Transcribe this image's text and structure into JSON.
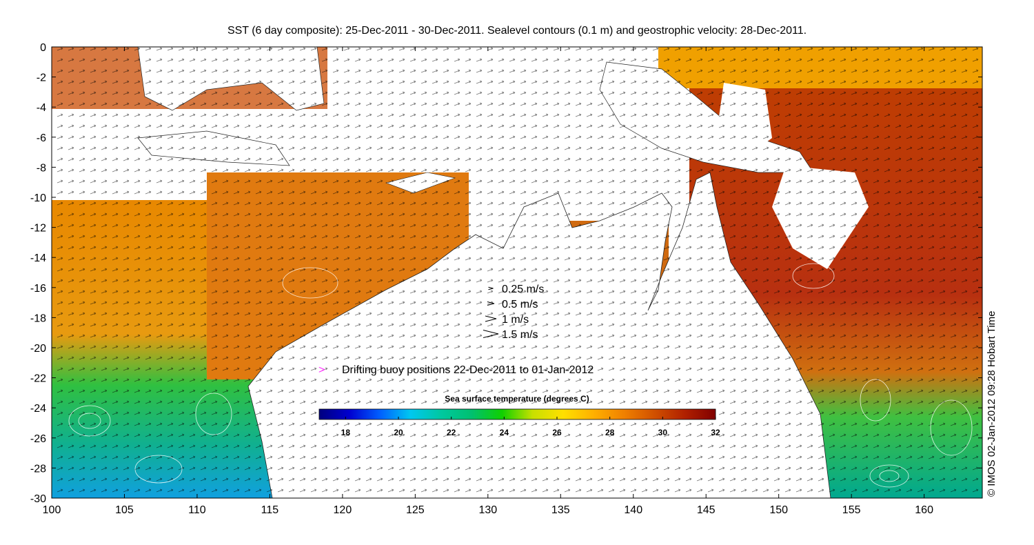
{
  "title": "SST (6 day composite): 25-Dec-2011 - 30-Dec-2011. Sealevel contours (0.1 m) and geostrophic velocity: 28-Dec-2011.",
  "credit": "© IMOS 02-Jan-2012 09:28 Hobart Time",
  "map": {
    "lon_range": [
      100,
      164
    ],
    "lat_range": [
      -30,
      0
    ],
    "x_ticks": [
      100,
      105,
      110,
      115,
      120,
      125,
      130,
      135,
      140,
      145,
      150,
      155,
      160
    ],
    "y_ticks": [
      0,
      -2,
      -4,
      -6,
      -8,
      -10,
      -12,
      -14,
      -16,
      -18,
      -20,
      -22,
      -24,
      -26,
      -28,
      -30
    ]
  },
  "velocity_legend": [
    {
      "label": "0.25 m/s",
      "speed": 0.25
    },
    {
      "label": "0.5 m/s",
      "speed": 0.5
    },
    {
      "label": "1 m/s",
      "speed": 1
    },
    {
      "label": "1.5 m/s",
      "speed": 1.5
    }
  ],
  "buoy_legend": {
    "label": "Drifting buoy positions 22-Dec-2011 to 01-Jan-2012",
    "marker": ">",
    "color": "#ff33ff"
  },
  "colorbar": {
    "title": "Sea surface temperature (degrees C)",
    "min": 17,
    "max": 32,
    "ticks": [
      18,
      20,
      22,
      24,
      26,
      28,
      30,
      32
    ],
    "colors": [
      "#00007f",
      "#0000d0",
      "#0060ff",
      "#00c8f0",
      "#00c8a0",
      "#00c070",
      "#10d000",
      "#c8e000",
      "#ffe000",
      "#ffb000",
      "#f08000",
      "#d05000",
      "#b02000",
      "#800000"
    ]
  }
}
